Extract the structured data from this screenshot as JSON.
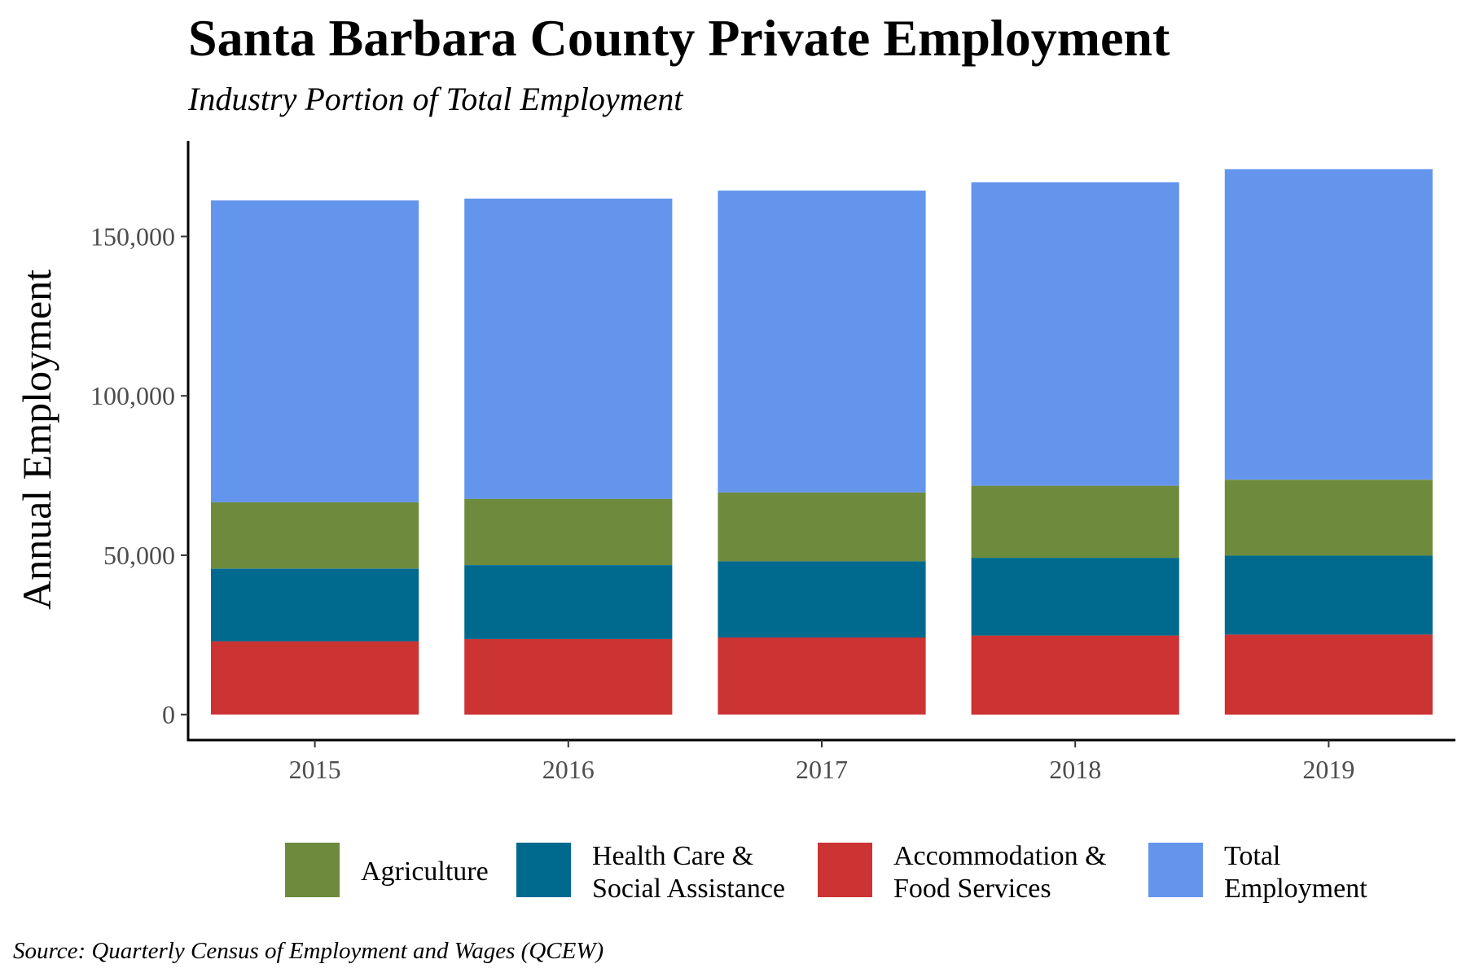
{
  "chart_data": {
    "type": "bar",
    "stacked": true,
    "title": "Santa Barbara County Private Employment",
    "subtitle": "Industry Portion of Total Employment",
    "ylabel": "Annual Employment",
    "xlabel": "",
    "caption": "Source: Quarterly Census of Employment and Wages (QCEW)",
    "categories": [
      "2015",
      "2016",
      "2017",
      "2018",
      "2019"
    ],
    "ylim": [
      -8000,
      180000
    ],
    "yticks": [
      0,
      50000,
      100000,
      150000
    ],
    "ytick_labels": [
      "0",
      "50,000",
      "100,000",
      "150,000"
    ],
    "grid": false,
    "legend_position": "bottom",
    "series": [
      {
        "name": "Accommodation & Food Services",
        "color": "#CC3333",
        "values": [
          23000,
          23700,
          24200,
          24800,
          25100
        ]
      },
      {
        "name": "Health Care & Social Assistance",
        "color": "#006A8E",
        "values": [
          22800,
          23200,
          23900,
          24400,
          24800
        ]
      },
      {
        "name": "Agriculture",
        "color": "#6E8B3D",
        "values": [
          20800,
          20800,
          21600,
          22600,
          23800
        ]
      },
      {
        "name": "Total Employment",
        "color": "#6495ED",
        "values": [
          94700,
          94200,
          94700,
          95200,
          97400
        ]
      }
    ],
    "totals": [
      161300,
      161900,
      164400,
      167000,
      171100
    ],
    "legend": [
      {
        "lines": [
          "Agriculture"
        ],
        "color": "#6E8B3D"
      },
      {
        "lines": [
          "Health Care &",
          "Social Assistance"
        ],
        "color": "#006A8E"
      },
      {
        "lines": [
          "Accommodation &",
          "Food Services"
        ],
        "color": "#CC3333"
      },
      {
        "lines": [
          "Total",
          "Employment"
        ],
        "color": "#6495ED"
      }
    ]
  }
}
